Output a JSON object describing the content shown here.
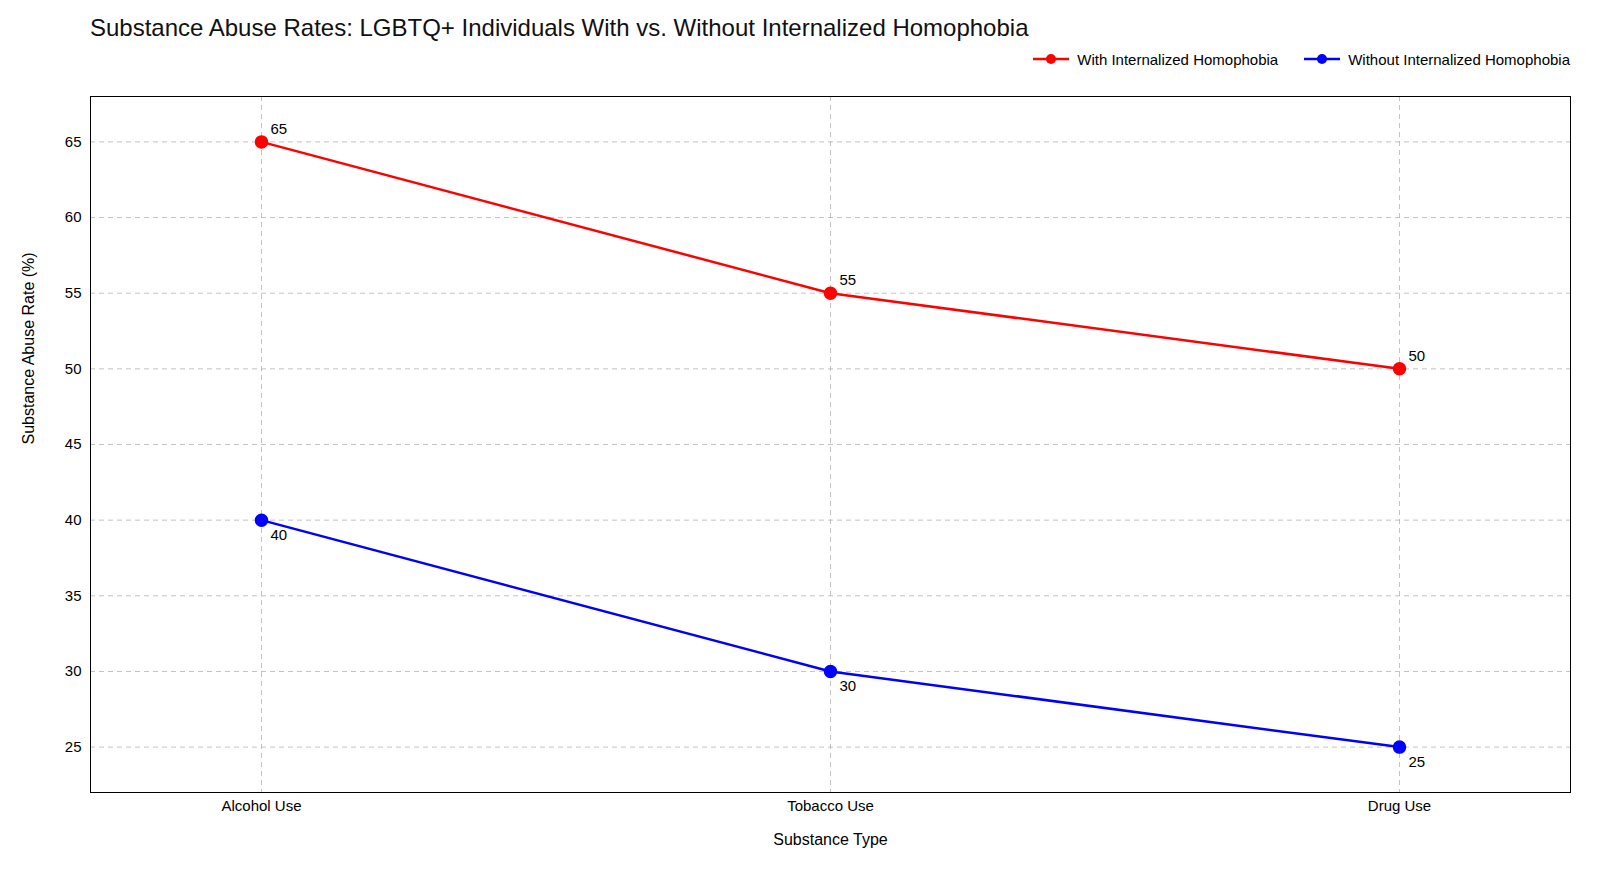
{
  "chart_data": {
    "type": "line",
    "title": "Substance Abuse Rates: LGBTQ+ Individuals With vs. Without Internalized Homophobia",
    "x_label": "Substance Type",
    "y_label": "Substance Abuse Rate (%)",
    "categories": [
      "Alcohol Use",
      "Tobacco Use",
      "Drug Use"
    ],
    "series": [
      {
        "name": "With Internalized Homophobia",
        "color": "red",
        "marker": "circle",
        "values": [
          65,
          55,
          50
        ]
      },
      {
        "name": "Without Internalized Homophobia",
        "color": "blue",
        "marker": "circle",
        "values": [
          40,
          30,
          25
        ]
      }
    ],
    "ylim": [
      22,
      68
    ],
    "yticks": [
      25,
      30,
      35,
      40,
      45,
      50,
      55,
      60,
      65
    ],
    "grid": true,
    "legend": "upper right",
    "data_labels": true
  }
}
